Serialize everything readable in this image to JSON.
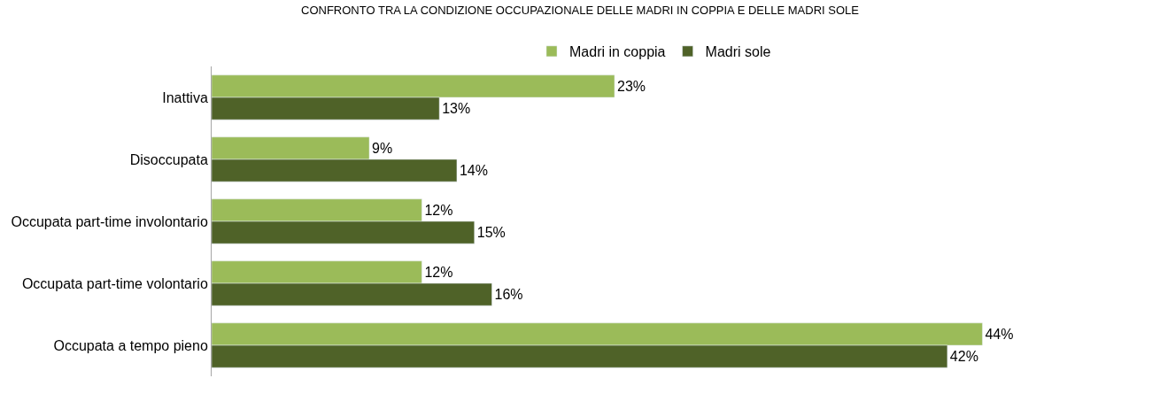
{
  "chart_data": {
    "type": "bar",
    "orientation": "horizontal",
    "title": "CONFRONTO TRA LA CONDIZIONE OCCUPAZIONALE DELLE MADRI IN COPPIA E DELLE MADRI SOLE",
    "categories": [
      "Inattiva",
      "Disoccupata",
      "Occupata part-time involontario",
      "Occupata part-time volontario",
      "Occupata a tempo pieno"
    ],
    "series": [
      {
        "name": "Madri in coppia",
        "color": "#9bbb59",
        "values": [
          23,
          9,
          12,
          12,
          44
        ],
        "value_labels": [
          "23%",
          "9%",
          "12%",
          "12%",
          "44%"
        ]
      },
      {
        "name": "Madri sole",
        "color": "#4f6228",
        "values": [
          13,
          14,
          15,
          16,
          42
        ],
        "value_labels": [
          "13%",
          "14%",
          "15%",
          "16%",
          "42%"
        ]
      }
    ],
    "legend": "top"
  }
}
